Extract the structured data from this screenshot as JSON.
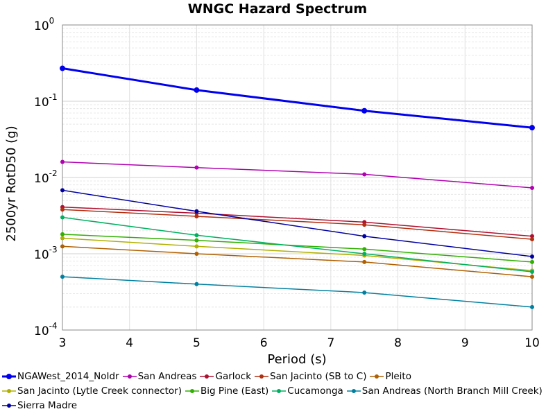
{
  "chart_data": {
    "type": "line",
    "title": "WNGC Hazard Spectrum",
    "xlabel": "Period (s)",
    "ylabel": "2500yr RotD50 (g)",
    "xlim": [
      3,
      10
    ],
    "ylim": [
      0.0001,
      1
    ],
    "yscale": "log",
    "grid": true,
    "legend_position": "bottom",
    "xticks": [
      "3",
      "4",
      "5",
      "6",
      "7",
      "8",
      "9",
      "10"
    ],
    "yticks": [
      {
        "base": "10",
        "exp": "0"
      },
      {
        "base": "10",
        "exp": "-1"
      },
      {
        "base": "10",
        "exp": "-2"
      },
      {
        "base": "10",
        "exp": "-3"
      },
      {
        "base": "10",
        "exp": "-4"
      }
    ],
    "x": [
      3,
      5,
      7.5,
      10
    ],
    "series": [
      {
        "name": "NGAWest_2014_NoIdr",
        "color": "#0000ee",
        "width": 3,
        "values": [
          0.27,
          0.14,
          0.075,
          0.045
        ]
      },
      {
        "name": "San Andreas",
        "color": "#b000b0",
        "width": 1.5,
        "values": [
          0.016,
          0.0135,
          0.011,
          0.0073
        ]
      },
      {
        "name": "Garlock",
        "color": "#b01030",
        "width": 1.5,
        "values": [
          0.0041,
          0.0034,
          0.0026,
          0.0017
        ]
      },
      {
        "name": "San Jacinto (SB to C)",
        "color": "#b03010",
        "width": 1.5,
        "values": [
          0.0038,
          0.0031,
          0.0024,
          0.00155
        ]
      },
      {
        "name": "Pleito",
        "color": "#b06000",
        "width": 1.5,
        "values": [
          0.00125,
          0.001,
          0.00078,
          0.0005
        ]
      },
      {
        "name": "San Jacinto (Lytle Creek connector)",
        "color": "#b0b000",
        "width": 1.5,
        "values": [
          0.0016,
          0.00125,
          0.00095,
          0.0006
        ]
      },
      {
        "name": "Big Pine (East)",
        "color": "#30b000",
        "width": 1.5,
        "values": [
          0.0018,
          0.0015,
          0.00115,
          0.00078
        ]
      },
      {
        "name": "Cucamonga",
        "color": "#00b060",
        "width": 1.5,
        "values": [
          0.003,
          0.00175,
          0.001,
          0.00058
        ]
      },
      {
        "name": "San Andreas (North Branch Mill Creek)",
        "color": "#0080a0",
        "width": 1.5,
        "values": [
          0.0005,
          0.0004,
          0.00031,
          0.0002
        ]
      },
      {
        "name": "Sierra Madre",
        "color": "#0000a0",
        "width": 1.5,
        "values": [
          0.0068,
          0.0036,
          0.0017,
          0.00092
        ]
      }
    ]
  }
}
